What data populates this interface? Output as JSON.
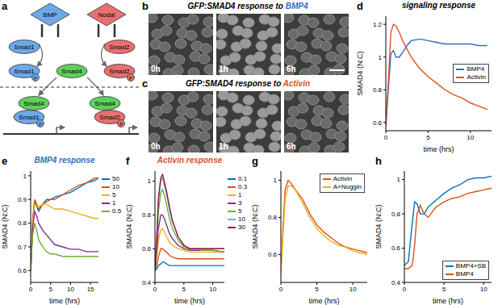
{
  "panel_a": {
    "label": "a",
    "ligands": [
      "BMP",
      "Nodal"
    ],
    "smads": {
      "left": "Smad1",
      "right": "Smad2",
      "common": "Smad4"
    },
    "phospho": "P"
  },
  "panel_b": {
    "label": "b",
    "title": "GFP:SMAD4 response to BMP4",
    "times": [
      "0h",
      "1h",
      "6h"
    ]
  },
  "panel_c": {
    "label": "c",
    "title": "GFP:SMAD4 response to Activin",
    "times": [
      "0h",
      "1h",
      "6h"
    ]
  },
  "chart_labels": [
    "d",
    "e",
    "f",
    "g",
    "h"
  ],
  "chart_data": [
    {
      "type": "line",
      "title": "signaling response",
      "x_label": "time (hrs)",
      "y_label": "SMAD4 (N:C)",
      "x": [
        0,
        0.3,
        0.6,
        0.9,
        1.2,
        1.6,
        2,
        2.5,
        3,
        4,
        5,
        6,
        7,
        8,
        9,
        10,
        11,
        12
      ],
      "series": [
        {
          "name": "BMP4",
          "color": "#2f6fbf",
          "values": [
            0.58,
            0.8,
            1.02,
            1.04,
            1.0,
            1.0,
            1.03,
            1.07,
            1.1,
            1.11,
            1.1,
            1.09,
            1.08,
            1.08,
            1.08,
            1.08,
            1.07,
            1.07
          ]
        },
        {
          "name": "Activin",
          "color": "#e0502a",
          "values": [
            0.58,
            0.85,
            1.15,
            1.2,
            1.19,
            1.15,
            1.1,
            1.05,
            1.0,
            0.93,
            0.88,
            0.84,
            0.8,
            0.77,
            0.75,
            0.72,
            0.7,
            0.68
          ]
        }
      ],
      "xlim": [
        0,
        12.5
      ],
      "ylim": [
        0.55,
        1.25
      ],
      "xticks": [
        0,
        5,
        10
      ],
      "yticks": [
        0.6,
        0.8,
        1,
        1.2
      ],
      "legend": "center right"
    },
    {
      "type": "line",
      "title": "BMP4 response",
      "x_label": "time (hrs)",
      "y_label": "SMAD4 (N:C)",
      "x": [
        0,
        0.5,
        1,
        1.5,
        2,
        3,
        4,
        5,
        6,
        8,
        10,
        12,
        14,
        16,
        17
      ],
      "series": [
        {
          "name": "50",
          "color": "#0072BD",
          "values": [
            0.6,
            0.8,
            0.89,
            0.87,
            0.85,
            0.88,
            0.9,
            0.9,
            0.91,
            0.92,
            0.93,
            0.95,
            0.97,
            0.98,
            0.99
          ]
        },
        {
          "name": "10",
          "color": "#D95319",
          "values": [
            0.6,
            0.82,
            0.9,
            0.88,
            0.86,
            0.88,
            0.89,
            0.9,
            0.9,
            0.92,
            0.94,
            0.96,
            0.97,
            0.99,
            0.99
          ]
        },
        {
          "name": "5",
          "color": "#EDB120",
          "values": [
            0.6,
            0.8,
            0.88,
            0.87,
            0.87,
            0.88,
            0.88,
            0.87,
            0.86,
            0.86,
            0.85,
            0.84,
            0.83,
            0.82,
            0.82
          ]
        },
        {
          "name": "1",
          "color": "#7E2F8E",
          "values": [
            0.6,
            0.78,
            0.85,
            0.83,
            0.8,
            0.77,
            0.75,
            0.73,
            0.71,
            0.7,
            0.69,
            0.69,
            0.68,
            0.68,
            0.68
          ]
        },
        {
          "name": "0.5",
          "color": "#77AC30",
          "values": [
            0.6,
            0.75,
            0.8,
            0.77,
            0.73,
            0.7,
            0.68,
            0.67,
            0.67,
            0.66,
            0.66,
            0.66,
            0.66,
            0.66,
            0.66
          ]
        }
      ],
      "xlim": [
        0,
        17
      ],
      "ylim": [
        0.55,
        1.02
      ],
      "xticks": [
        0,
        5,
        10,
        15
      ],
      "yticks": [
        0.6,
        0.7,
        0.8,
        0.9,
        1
      ],
      "legend": "right"
    },
    {
      "type": "line",
      "title": "Activin response",
      "x_label": "time (hrs)",
      "y_label": "SMAD4 (N:C)",
      "x": [
        0,
        0.3,
        0.6,
        1,
        1.3,
        1.6,
        2,
        2.5,
        3,
        4,
        5,
        6,
        7,
        8,
        10,
        12
      ],
      "series": [
        {
          "name": "0.1",
          "color": "#0072BD",
          "values": [
            0.47,
            0.48,
            0.5,
            0.51,
            0.52,
            0.52,
            0.51,
            0.5,
            0.5,
            0.5,
            0.5,
            0.5,
            0.5,
            0.5,
            0.5,
            0.5
          ]
        },
        {
          "name": "0.3",
          "color": "#D95319",
          "values": [
            0.47,
            0.5,
            0.55,
            0.6,
            0.6,
            0.59,
            0.58,
            0.56,
            0.55,
            0.54,
            0.54,
            0.54,
            0.54,
            0.54,
            0.54,
            0.54
          ]
        },
        {
          "name": "1",
          "color": "#EDB120",
          "values": [
            0.47,
            0.55,
            0.65,
            0.71,
            0.72,
            0.7,
            0.67,
            0.64,
            0.62,
            0.6,
            0.59,
            0.58,
            0.58,
            0.58,
            0.58,
            0.58
          ]
        },
        {
          "name": "3",
          "color": "#7E2F8E",
          "values": [
            0.47,
            0.58,
            0.72,
            0.8,
            0.8,
            0.78,
            0.74,
            0.69,
            0.66,
            0.62,
            0.6,
            0.59,
            0.59,
            0.59,
            0.59,
            0.58
          ]
        },
        {
          "name": "5",
          "color": "#77AC30",
          "values": [
            0.47,
            0.62,
            0.82,
            0.93,
            0.95,
            0.92,
            0.86,
            0.78,
            0.72,
            0.65,
            0.61,
            0.6,
            0.6,
            0.59,
            0.59,
            0.58
          ]
        },
        {
          "name": "10",
          "color": "#4DBEEE",
          "values": [
            0.47,
            0.65,
            0.88,
            1.0,
            1.02,
            0.98,
            0.92,
            0.83,
            0.76,
            0.67,
            0.62,
            0.6,
            0.6,
            0.6,
            0.6,
            0.6
          ]
        },
        {
          "name": "30",
          "color": "#A2142F",
          "values": [
            0.47,
            0.66,
            0.9,
            1.02,
            1.04,
            1.0,
            0.94,
            0.85,
            0.77,
            0.67,
            0.62,
            0.6,
            0.6,
            0.6,
            0.6,
            0.6
          ]
        }
      ],
      "xlim": [
        0,
        12
      ],
      "ylim": [
        0.4,
        1.06
      ],
      "xticks": [
        0,
        5,
        10
      ],
      "yticks": [
        0.4,
        0.6,
        0.8,
        1
      ],
      "legend": "right"
    },
    {
      "type": "line",
      "x_label": "time (hrs)",
      "y_label": "SMAD4 (N:C)",
      "x": [
        0,
        0.3,
        0.6,
        1,
        1.5,
        2,
        3,
        4,
        5,
        6,
        7,
        8,
        9,
        10,
        11,
        12
      ],
      "series": [
        {
          "name": "Activin",
          "color": "#D95319",
          "values": [
            0.5,
            0.75,
            0.95,
            1.0,
            0.98,
            0.95,
            0.9,
            0.82,
            0.76,
            0.72,
            0.69,
            0.66,
            0.64,
            0.63,
            0.62,
            0.61
          ]
        },
        {
          "name": "A+Noggin",
          "color": "#EDB120",
          "values": [
            0.5,
            0.7,
            0.9,
            0.97,
            0.97,
            0.95,
            0.88,
            0.8,
            0.74,
            0.7,
            0.67,
            0.65,
            0.64,
            0.62,
            0.61,
            0.6
          ]
        }
      ],
      "xlim": [
        0,
        12
      ],
      "ylim": [
        0.45,
        1.05
      ],
      "xticks": [
        0,
        5,
        10
      ],
      "yticks": [
        0.6,
        0.8,
        1
      ],
      "legend": "upper right"
    },
    {
      "type": "line",
      "x_label": "time (hrs)",
      "y_label": "SMAD4 (N:C)",
      "x": [
        0,
        0.5,
        1,
        1.3,
        1.6,
        2,
        2.5,
        3,
        4,
        5,
        6,
        7,
        8,
        9,
        10,
        11
      ],
      "series": [
        {
          "name": "BMP4+SB",
          "color": "#0072BD",
          "values": [
            0.5,
            0.52,
            0.75,
            0.87,
            0.86,
            0.8,
            0.8,
            0.84,
            0.88,
            0.92,
            0.95,
            0.97,
            1.0,
            1.01,
            1.01,
            1.02
          ]
        },
        {
          "name": "BMP4",
          "color": "#D95319",
          "values": [
            0.48,
            0.48,
            0.5,
            0.62,
            0.8,
            0.85,
            0.8,
            0.78,
            0.84,
            0.87,
            0.89,
            0.9,
            0.92,
            0.93,
            0.94,
            0.95
          ]
        }
      ],
      "xlim": [
        0,
        11
      ],
      "ylim": [
        0.4,
        1.05
      ],
      "xticks": [
        0,
        5,
        10
      ],
      "yticks": [
        0.4,
        0.6,
        0.8,
        1
      ],
      "legend": "lower right"
    }
  ]
}
